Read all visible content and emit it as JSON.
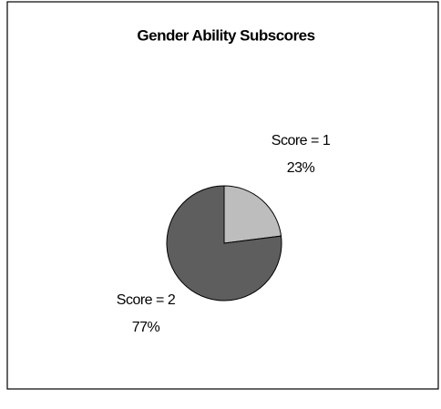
{
  "chart_data": {
    "type": "pie",
    "title": "Gender Ability Subscores",
    "categories": [
      "Score = 1",
      "Score = 2"
    ],
    "values": [
      23,
      77
    ],
    "value_labels": [
      "23%",
      "77%"
    ],
    "colors": [
      "#bdbdbd",
      "#5e5e5e"
    ]
  }
}
